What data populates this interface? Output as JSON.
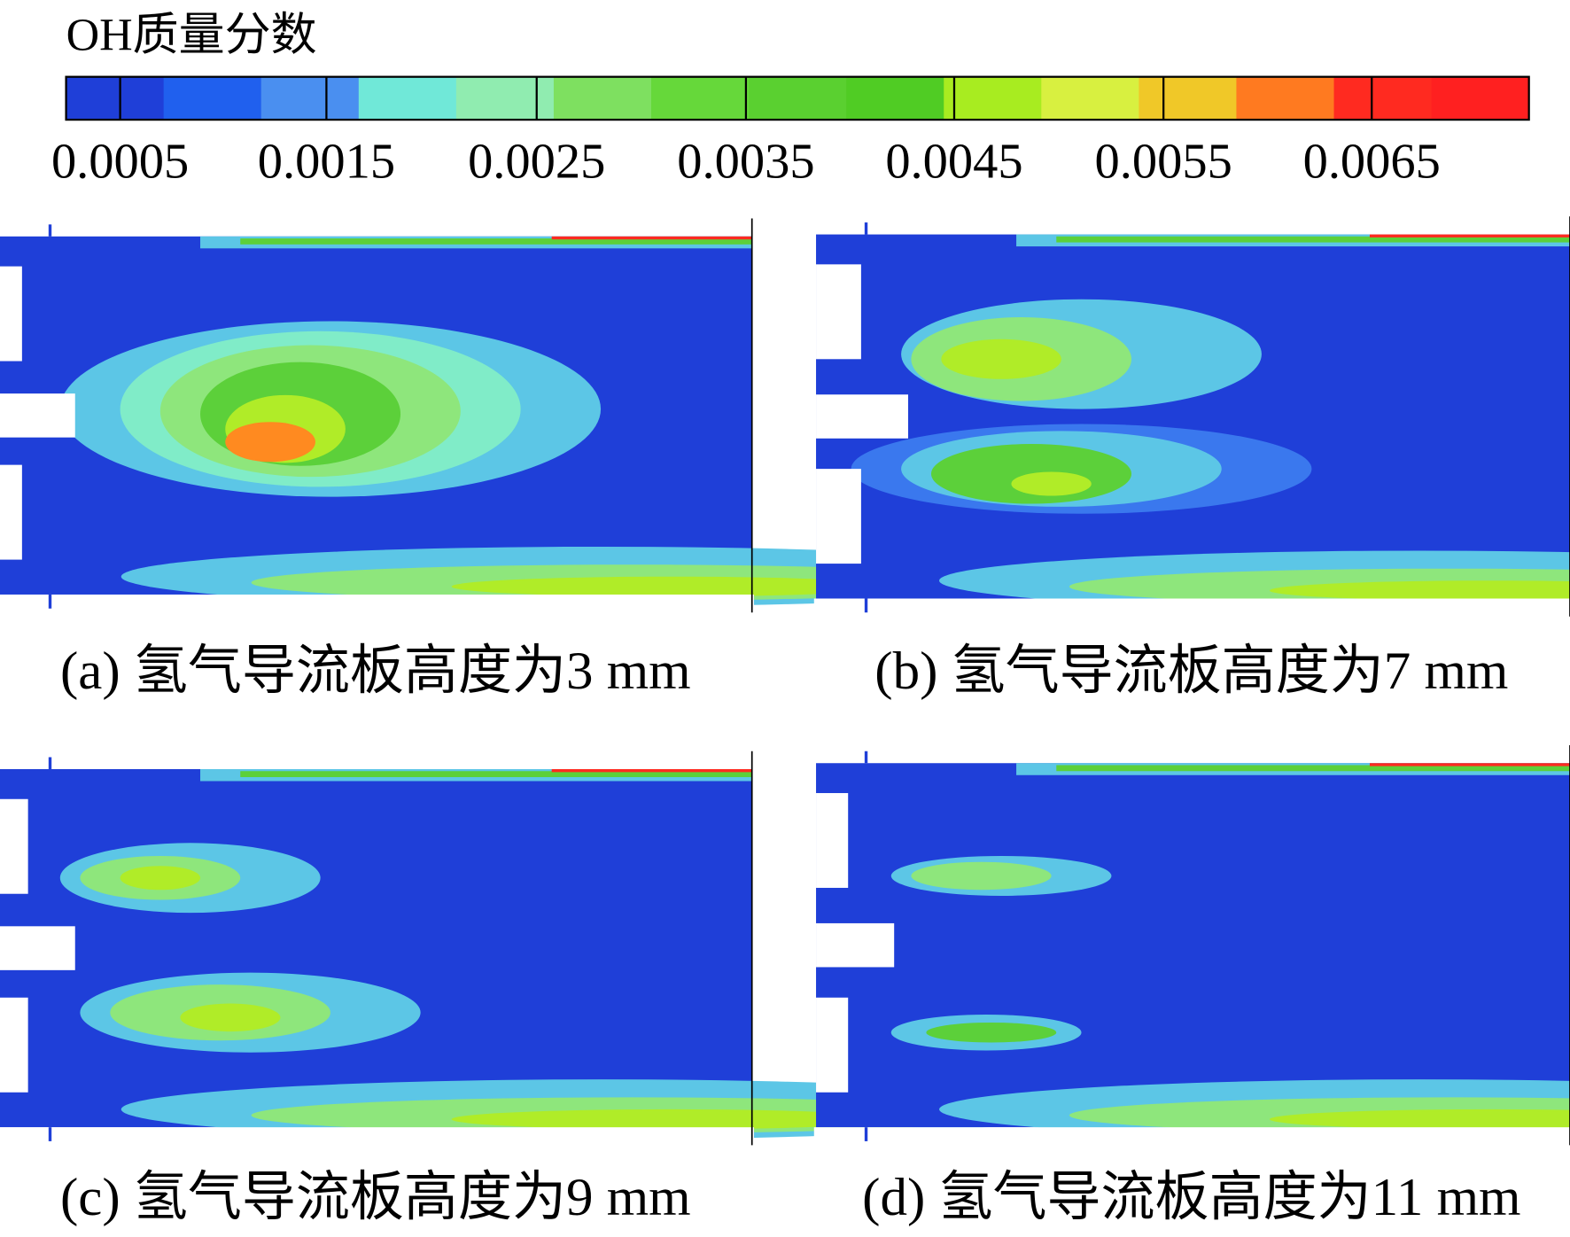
{
  "colorbar": {
    "title": "OH质量分数",
    "ticks": [
      "0.0005",
      "0.0015",
      "0.0025",
      "0.0035",
      "0.0045",
      "0.0055",
      "0.0065"
    ]
  },
  "panels": [
    {
      "caption": "(a) 氢气导流板高度为3 mm"
    },
    {
      "caption": "(b) 氢气导流板高度为7 mm"
    },
    {
      "caption": "(c) 氢气导流板高度为9 mm"
    },
    {
      "caption": "(d) 氢气导流板高度为11 mm"
    }
  ]
}
